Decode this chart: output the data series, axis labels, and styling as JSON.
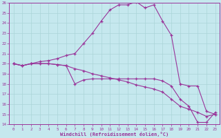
{
  "xlabel": "Windchill (Refroidissement éolien,°C)",
  "xlim_min": -0.5,
  "xlim_max": 23.5,
  "ylim_min": 14,
  "ylim_max": 26,
  "xticks": [
    0,
    1,
    2,
    3,
    4,
    5,
    6,
    7,
    8,
    9,
    10,
    11,
    12,
    13,
    14,
    15,
    16,
    17,
    18,
    19,
    20,
    21,
    22,
    23
  ],
  "yticks": [
    14,
    15,
    16,
    17,
    18,
    19,
    20,
    21,
    22,
    23,
    24,
    25,
    26
  ],
  "background_color": "#c5e8ee",
  "grid_color": "#aad4d8",
  "line_color": "#993399",
  "line1_x": [
    0,
    1,
    2,
    3,
    4,
    5,
    6,
    7,
    8,
    9,
    10,
    11,
    12,
    13,
    14,
    15,
    16,
    17,
    18,
    19,
    20,
    21,
    22,
    23
  ],
  "line1_y": [
    20.0,
    19.8,
    20.0,
    20.0,
    20.0,
    19.9,
    19.8,
    19.5,
    19.3,
    19.0,
    18.8,
    18.6,
    18.4,
    18.2,
    17.9,
    17.7,
    17.5,
    17.2,
    16.5,
    15.8,
    15.5,
    15.2,
    14.8,
    15.0
  ],
  "line2_x": [
    0,
    1,
    2,
    3,
    4,
    5,
    6,
    7,
    8,
    9,
    10,
    11,
    12,
    13,
    14,
    15,
    16,
    17,
    18,
    19,
    20,
    21,
    22,
    23
  ],
  "line2_y": [
    20.0,
    19.8,
    20.0,
    20.0,
    20.0,
    19.9,
    19.8,
    18.0,
    18.4,
    18.5,
    18.5,
    18.5,
    18.5,
    18.5,
    18.5,
    18.5,
    18.5,
    18.3,
    17.8,
    16.5,
    15.8,
    14.2,
    14.2,
    15.2
  ],
  "line3_x": [
    0,
    1,
    2,
    3,
    4,
    5,
    6,
    7,
    8,
    9,
    10,
    11,
    12,
    13,
    14,
    15,
    16,
    17,
    18,
    19,
    20,
    21,
    22,
    23
  ],
  "line3_y": [
    20.0,
    19.8,
    20.0,
    20.2,
    20.3,
    20.5,
    20.8,
    21.0,
    22.0,
    23.0,
    24.2,
    25.3,
    25.8,
    25.8,
    26.1,
    25.5,
    25.8,
    24.2,
    22.8,
    18.0,
    17.8,
    17.8,
    15.3,
    15.0
  ]
}
